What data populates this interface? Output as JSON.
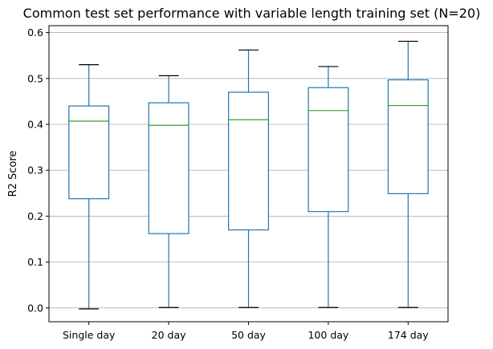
{
  "chart_data": {
    "type": "boxplot",
    "title": "Common test set performance with variable length training set (N=20)",
    "xlabel": "",
    "ylabel": "R2 Score",
    "categories": [
      "Single day",
      "20 day",
      "50 day",
      "100 day",
      "174 day"
    ],
    "boxes": [
      {
        "category": "Single day",
        "whisker_low": -0.002,
        "q1": 0.238,
        "median": 0.407,
        "q3": 0.44,
        "whisker_high": 0.53
      },
      {
        "category": "20 day",
        "whisker_low": 0.001,
        "q1": 0.162,
        "median": 0.398,
        "q3": 0.447,
        "whisker_high": 0.506
      },
      {
        "category": "50 day",
        "whisker_low": 0.001,
        "q1": 0.17,
        "median": 0.41,
        "q3": 0.47,
        "whisker_high": 0.562
      },
      {
        "category": "100 day",
        "whisker_low": 0.001,
        "q1": 0.21,
        "median": 0.43,
        "q3": 0.48,
        "whisker_high": 0.526
      },
      {
        "category": "174 day",
        "whisker_low": 0.001,
        "q1": 0.249,
        "median": 0.441,
        "q3": 0.497,
        "whisker_high": 0.581
      }
    ],
    "ylim": [
      -0.03,
      0.615
    ],
    "yticks": [
      0.0,
      0.1,
      0.2,
      0.3,
      0.4,
      0.5,
      0.6
    ],
    "ytick_labels": [
      "0.0",
      "0.1",
      "0.2",
      "0.3",
      "0.4",
      "0.5",
      "0.6"
    ],
    "grid": "horizontal",
    "colors": {
      "box": "#1f77b4",
      "median": "#2ca02c",
      "whisker_cap": "#000000",
      "grid": "#b0b0b0",
      "axis": "#000000"
    }
  }
}
